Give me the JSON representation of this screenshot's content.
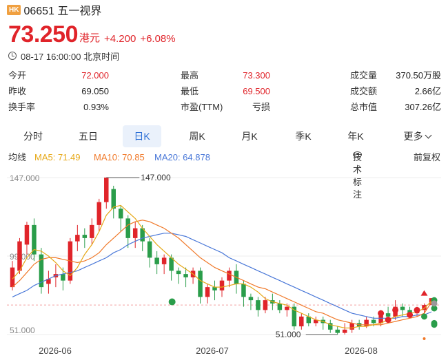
{
  "header": {
    "market_badge": "HK",
    "title": "06651 五一视界"
  },
  "quote": {
    "price": "73.250",
    "currency": "港元",
    "change": "+4.200",
    "change_pct": "+6.08%"
  },
  "timestamp": "08-17 16:00:00 北京时间",
  "stats": {
    "open_label": "今开",
    "open": "72.000",
    "high_label": "最高",
    "high": "73.300",
    "volume_label": "成交量",
    "volume": "370.50万股",
    "prev_close_label": "昨收",
    "prev_close": "69.050",
    "low_label": "最低",
    "low": "69.500",
    "turnover_label": "成交额",
    "turnover": "2.66亿",
    "turnover_rate_label": "换手率",
    "turnover_rate": "0.93%",
    "pe_label": "市盈(TTM)",
    "pe": "亏损",
    "market_cap_label": "总市值",
    "market_cap": "307.26亿"
  },
  "tabs": {
    "intraday": "分时",
    "five_day": "五日",
    "daily": "日K",
    "weekly": "周K",
    "monthly": "月K",
    "quarterly": "季K",
    "yearly": "年K",
    "more": "更多"
  },
  "ma_bar": {
    "label": "均线",
    "ma5": "MA5: 71.49",
    "ma10": "MA10: 70.85",
    "ma20": "MA20: 64.878",
    "tech_marks": "技术标注",
    "adjust": "前复权"
  },
  "colors": {
    "up": "#e0242a",
    "down": "#2a9d4a",
    "ma5": "#e6a817",
    "ma10": "#f07828",
    "ma20": "#4a78d8",
    "accent": "#2c6fd6"
  },
  "chart_data": {
    "type": "candlestick",
    "y_ticks": [
      "147.000",
      "99.000",
      "51.000"
    ],
    "ylim": [
      51,
      147
    ],
    "x_ticks": [
      "2026-06",
      "2026-07",
      "2026-08"
    ],
    "max_label": "147.000",
    "min_label": "51.000",
    "prev_close": 69.05,
    "candles": [
      [
        80,
        92,
        78,
        96
      ],
      [
        90,
        108,
        88,
        110
      ],
      [
        106,
        118,
        100,
        120
      ],
      [
        118,
        100,
        96,
        122
      ],
      [
        100,
        80,
        76,
        104
      ],
      [
        82,
        85,
        76,
        90
      ],
      [
        86,
        88,
        80,
        94
      ],
      [
        88,
        84,
        78,
        92
      ],
      [
        84,
        108,
        82,
        110
      ],
      [
        108,
        112,
        102,
        118
      ],
      [
        112,
        110,
        104,
        116
      ],
      [
        110,
        118,
        106,
        122
      ],
      [
        118,
        132,
        114,
        134
      ],
      [
        132,
        147,
        128,
        147
      ],
      [
        140,
        128,
        122,
        142
      ],
      [
        128,
        122,
        114,
        130
      ],
      [
        122,
        110,
        104,
        124
      ],
      [
        110,
        116,
        104,
        120
      ],
      [
        116,
        108,
        102,
        118
      ],
      [
        108,
        98,
        92,
        110
      ],
      [
        98,
        94,
        88,
        102
      ],
      [
        94,
        98,
        88,
        100
      ],
      [
        98,
        90,
        84,
        100
      ],
      [
        90,
        88,
        82,
        92
      ],
      [
        88,
        86,
        80,
        92
      ],
      [
        86,
        90,
        82,
        92
      ],
      [
        90,
        74,
        70,
        92
      ],
      [
        74,
        80,
        70,
        82
      ],
      [
        80,
        78,
        72,
        84
      ],
      [
        78,
        84,
        74,
        86
      ],
      [
        84,
        90,
        80,
        92
      ],
      [
        90,
        82,
        76,
        94
      ],
      [
        82,
        74,
        68,
        84
      ],
      [
        74,
        72,
        66,
        76
      ],
      [
        72,
        66,
        62,
        74
      ],
      [
        66,
        72,
        64,
        74
      ],
      [
        72,
        70,
        66,
        76
      ],
      [
        70,
        66,
        64,
        72
      ],
      [
        66,
        68,
        62,
        70
      ],
      [
        68,
        56,
        54,
        70
      ],
      [
        56,
        62,
        54,
        64
      ],
      [
        62,
        58,
        56,
        64
      ],
      [
        58,
        60,
        56,
        62
      ],
      [
        60,
        58,
        54,
        62
      ],
      [
        58,
        54,
        52,
        60
      ],
      [
        54,
        52,
        51,
        56
      ],
      [
        52,
        54,
        51,
        58
      ],
      [
        54,
        58,
        52,
        60
      ],
      [
        58,
        56,
        54,
        60
      ],
      [
        56,
        60,
        55,
        62
      ],
      [
        60,
        58,
        56,
        62
      ],
      [
        58,
        64,
        56,
        66
      ],
      [
        64,
        62,
        60,
        68
      ],
      [
        62,
        68,
        60,
        72
      ],
      [
        68,
        66,
        62,
        70
      ],
      [
        66,
        64,
        62,
        68
      ],
      [
        64,
        66,
        62,
        68
      ],
      [
        66,
        69.05,
        64,
        70
      ],
      [
        69.05,
        73.25,
        69.5,
        73.3
      ]
    ],
    "ma5": [
      85,
      90,
      98,
      103,
      102,
      99,
      95,
      90,
      87,
      92,
      100,
      106,
      114,
      124,
      129,
      130,
      126,
      122,
      116,
      111,
      106,
      102,
      98,
      94,
      91,
      88,
      84,
      82,
      80,
      80,
      81,
      82,
      82,
      80,
      77,
      73,
      71,
      70,
      69,
      66,
      64,
      62,
      60,
      59,
      57,
      56,
      55,
      55,
      56,
      56,
      57,
      58,
      60,
      62,
      63,
      64,
      65,
      67,
      71.49
    ],
    "ma10": [
      80,
      84,
      89,
      94,
      97,
      98,
      98,
      97,
      96,
      95,
      96,
      98,
      101,
      106,
      110,
      114,
      118,
      120,
      121,
      120,
      118,
      116,
      113,
      110,
      106,
      102,
      98,
      95,
      92,
      90,
      88,
      86,
      84,
      82,
      80,
      79,
      77,
      75,
      73,
      71,
      69,
      67,
      65,
      64,
      62,
      60,
      59,
      58,
      57,
      57,
      57,
      57,
      58,
      59,
      60,
      61,
      62,
      64,
      70.85
    ],
    "ma20": [
      74,
      76,
      78,
      81,
      83,
      85,
      87,
      88,
      89,
      90,
      92,
      94,
      96,
      98,
      101,
      103,
      106,
      108,
      110,
      111,
      112,
      113,
      113,
      112,
      111,
      109,
      107,
      105,
      103,
      101,
      98,
      96,
      94,
      92,
      90,
      88,
      86,
      84,
      82,
      80,
      78,
      76,
      74,
      72,
      70,
      68,
      66,
      64,
      63,
      62,
      61,
      61,
      61,
      61,
      62,
      62,
      63,
      63,
      64.878
    ]
  }
}
